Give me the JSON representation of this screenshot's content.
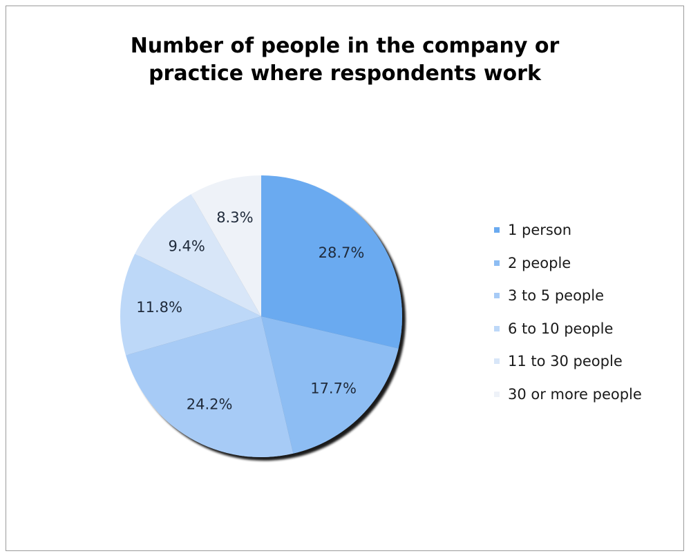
{
  "chart_data": {
    "type": "pie",
    "title": [
      "Number of people in the company or",
      "practice where respondents work"
    ],
    "categories": [
      "1 person",
      "2 people",
      "3 to 5 people",
      "6 to 10 people",
      "11 to 30 people",
      "30 or more people"
    ],
    "values": [
      28.7,
      17.7,
      24.2,
      11.8,
      9.4,
      8.3
    ],
    "value_labels": [
      "28.7%",
      "17.7%",
      "24.2%",
      "11.8%",
      "9.4%",
      "8.3%"
    ],
    "colors": [
      "#6aaaf0",
      "#8dbdf3",
      "#a7cbf6",
      "#bdd8f8",
      "#d8e6f8",
      "#eef2f8"
    ],
    "legend_placement": "right",
    "start_angle_deg": 0,
    "direction": "clockwise"
  }
}
